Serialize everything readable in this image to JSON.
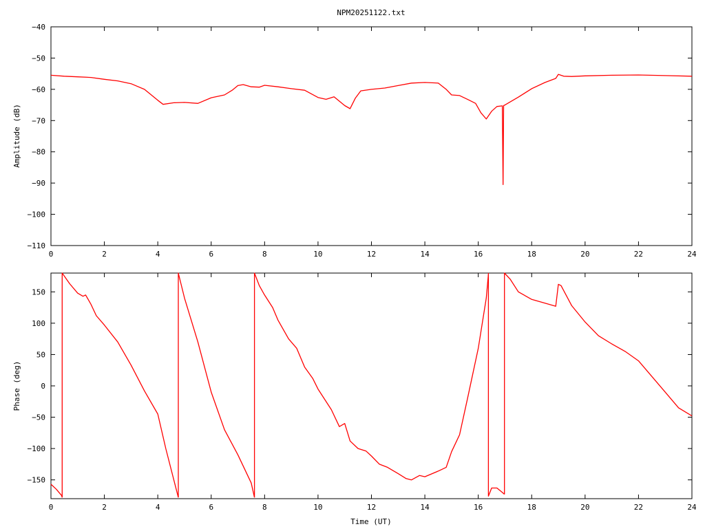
{
  "title": "NPM20251122.txt",
  "colors": {
    "trace": "#ff0000",
    "axis": "#000000",
    "background": "#ffffff"
  },
  "chart_data": [
    {
      "type": "line",
      "title": "NPM20251122.txt",
      "xlabel": "",
      "ylabel": "Amplitude (dB)",
      "xlim": [
        0,
        24
      ],
      "ylim": [
        -110,
        -40
      ],
      "xticks": [
        0,
        2,
        4,
        6,
        8,
        10,
        12,
        14,
        16,
        18,
        20,
        22,
        24
      ],
      "yticks": [
        -110,
        -100,
        -90,
        -80,
        -70,
        -60,
        -50,
        -40
      ],
      "xtick_labels": [
        "0",
        "2",
        "4",
        "6",
        "8",
        "10",
        "12",
        "14",
        "16",
        "18",
        "20",
        "22",
        "24"
      ],
      "ytick_labels": [
        "−110",
        "−100",
        "−90",
        "−80",
        "−70",
        "−60",
        "−50",
        "−40"
      ],
      "grid": false,
      "legend": "none",
      "series": [
        {
          "x": [
            0,
            0.5,
            1,
            1.5,
            2,
            2.5,
            3,
            3.5,
            4,
            4.2,
            4.6,
            5,
            5.5,
            6,
            6.5,
            6.8,
            7,
            7.2,
            7.5,
            7.8,
            8,
            8.5,
            9,
            9.5,
            10,
            10.3,
            10.6,
            11,
            11.2,
            11.4,
            11.6,
            12,
            12.5,
            13,
            13.5,
            14,
            14.5,
            14.8,
            15,
            15.3,
            15.6,
            15.9,
            16.1,
            16.3,
            16.5,
            16.7,
            16.9,
            16.93,
            16.95,
            17,
            17.5,
            18,
            18.5,
            18.9,
            19,
            19.2,
            19.5,
            20,
            21,
            22,
            23,
            24
          ],
          "y": [
            -55.5,
            -55.8,
            -56,
            -56.2,
            -56.8,
            -57.3,
            -58.2,
            -60,
            -63.5,
            -64.8,
            -64.3,
            -64.2,
            -64.5,
            -62.7,
            -61.8,
            -60.2,
            -58.8,
            -58.5,
            -59.2,
            -59.3,
            -58.7,
            -59.2,
            -59.8,
            -60.3,
            -62.6,
            -63.2,
            -62.4,
            -65.2,
            -66.2,
            -62.8,
            -60.5,
            -60,
            -59.6,
            -58.8,
            -58,
            -57.8,
            -58,
            -60,
            -61.8,
            -62,
            -63.2,
            -64.5,
            -67.5,
            -69.5,
            -67,
            -65.5,
            -65.3,
            -90.5,
            -65.2,
            -65,
            -62.5,
            -59.8,
            -57.8,
            -56.5,
            -55.2,
            -55.8,
            -55.9,
            -55.7,
            -55.5,
            -55.4,
            -55.6,
            -55.8
          ]
        }
      ]
    },
    {
      "type": "line",
      "title": "",
      "xlabel": "Time (UT)",
      "ylabel": "Phase (deg)",
      "xlim": [
        0,
        24
      ],
      "ylim": [
        -180,
        180
      ],
      "xticks": [
        0,
        2,
        4,
        6,
        8,
        10,
        12,
        14,
        16,
        18,
        20,
        22,
        24
      ],
      "yticks": [
        -150,
        -100,
        -50,
        0,
        50,
        100,
        150
      ],
      "xtick_labels": [
        "0",
        "2",
        "4",
        "6",
        "8",
        "10",
        "12",
        "14",
        "16",
        "18",
        "20",
        "22",
        "24"
      ],
      "ytick_labels": [
        "−150",
        "−100",
        "−50",
        "0",
        "50",
        "100",
        "150"
      ],
      "grid": false,
      "legend": "none",
      "series": [
        {
          "segments": [
            {
              "x": [
                0,
                0.2,
                0.4,
                0.42
              ],
              "y": [
                -157,
                -165,
                -175,
                -178
              ]
            },
            {
              "x": [
                0.42,
                0.42,
                0.7,
                1,
                1.2,
                1.3,
                1.5,
                1.7,
                2,
                2.5,
                3,
                3.5,
                4,
                4.3,
                4.77
              ],
              "y": [
                -178,
                180,
                163,
                148,
                143,
                145,
                130,
                112,
                97,
                70,
                33,
                -8,
                -45,
                -100,
                -178
              ]
            },
            {
              "x": [
                4.77,
                4.77,
                5,
                5.5,
                6,
                6.5,
                7,
                7.5,
                7.62
              ],
              "y": [
                -178,
                180,
                140,
                70,
                -10,
                -70,
                -110,
                -155,
                -178
              ]
            },
            {
              "x": [
                7.62,
                7.62,
                7.8,
                8,
                8.3,
                8.5,
                8.9,
                9.2,
                9.5,
                9.8,
                10,
                10.5,
                10.8,
                11,
                11.2,
                11.5,
                11.8,
                12,
                12.3,
                12.6,
                13,
                13.3,
                13.5,
                13.8,
                14,
                14.5,
                14.8,
                15,
                15.3,
                15.6,
                16,
                16.3,
                16.38
              ],
              "y": [
                -178,
                180,
                160,
                145,
                125,
                105,
                75,
                60,
                30,
                12,
                -5,
                -38,
                -65,
                -60,
                -88,
                -100,
                -104,
                -112,
                -125,
                -130,
                -140,
                -148,
                -150,
                -143,
                -145,
                -136,
                -130,
                -105,
                -78,
                -20,
                60,
                140,
                178
              ]
            },
            {
              "x": [
                16.38,
                16.38,
                16.5,
                16.7,
                16.9,
                16.98
              ],
              "y": [
                180,
                -176,
                -163,
                -163,
                -170,
                -173
              ]
            },
            {
              "x": [
                16.98,
                16.98,
                17.2,
                17.5,
                18,
                18.5,
                18.9,
                19,
                19.1,
                19.5,
                20,
                20.5,
                21,
                21.5,
                22,
                22.5,
                23,
                23.5,
                24
              ],
              "y": [
                -173,
                180,
                170,
                150,
                138,
                132,
                127,
                162,
                160,
                128,
                102,
                80,
                67,
                55,
                40,
                15,
                -10,
                -35,
                -48
              ]
            }
          ]
        }
      ]
    }
  ]
}
